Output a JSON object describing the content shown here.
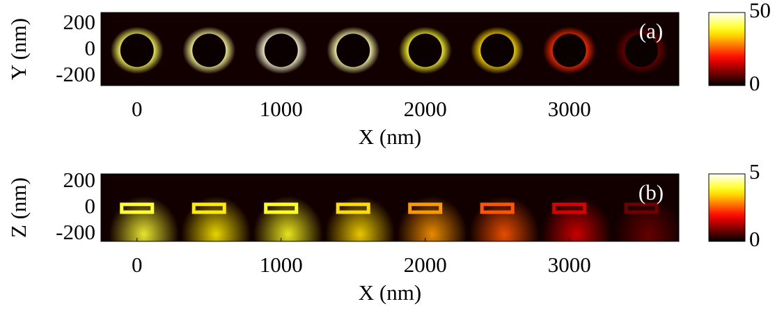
{
  "chart_data": [
    {
      "type": "heatmap",
      "panel_label": "(a)",
      "x_label": "X (nm)",
      "y_label": "Y (nm)",
      "xlim": [
        -250,
        3760
      ],
      "ylim": [
        -270,
        290
      ],
      "xticks": [
        0,
        1000,
        2000,
        3000
      ],
      "yticks": [
        -200,
        0,
        200
      ],
      "colormap": "hot",
      "clim": [
        0,
        50
      ],
      "cticks": [
        0,
        50
      ],
      "particle_x": [
        0,
        500,
        1000,
        1500,
        2000,
        2500,
        3000,
        3500
      ],
      "values": [
        42,
        45,
        48,
        46,
        40,
        35,
        22,
        8
      ]
    },
    {
      "type": "heatmap",
      "panel_label": "(b)",
      "x_label": "X (nm)",
      "y_label": "Z (nm)",
      "xlim": [
        -250,
        3760
      ],
      "ylim": [
        -255,
        265
      ],
      "xticks": [
        0,
        1000,
        2000,
        3000
      ],
      "yticks": [
        -200,
        0,
        200
      ],
      "colormap": "hot",
      "clim": [
        0,
        5
      ],
      "cticks": [
        0,
        5
      ],
      "particle_x": [
        0,
        500,
        1000,
        1500,
        2000,
        2500,
        3000,
        3500
      ],
      "values": [
        4,
        3.6,
        3.9,
        3.5,
        3,
        2.5,
        1.6,
        0.8
      ]
    }
  ]
}
